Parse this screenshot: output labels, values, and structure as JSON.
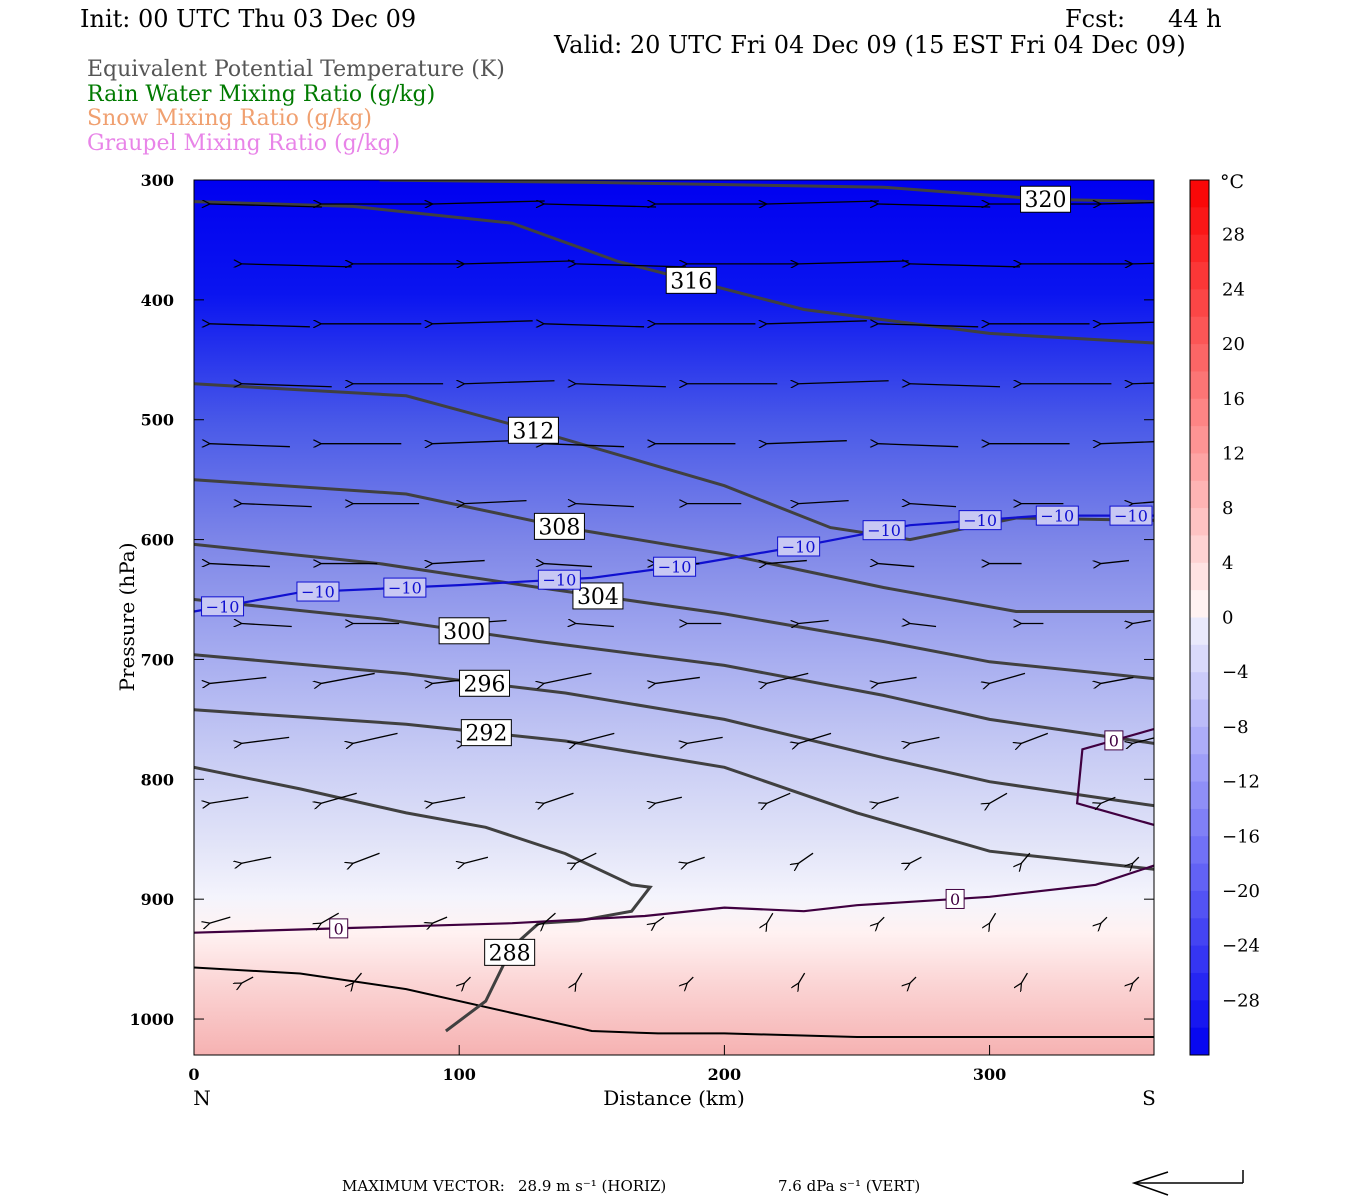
{
  "header": {
    "init": "Init: 00 UTC Thu 03 Dec 09",
    "fcst_label": "Fcst:",
    "fcst_value": "44 h",
    "valid": "Valid: 20 UTC Fri 04 Dec 09 (15 EST Fri 04 Dec 09)"
  },
  "legend_titles": [
    {
      "text": "Equivalent Potential Temperature (K)",
      "color": "#555555"
    },
    {
      "text": "Rain Water Mixing Ratio (g/kg)",
      "color": "#007a00"
    },
    {
      "text": "Snow Mixing Ratio (g/kg)",
      "color": "#f0a070"
    },
    {
      "text": "Graupel Mixing Ratio (g/kg)",
      "color": "#e884e8"
    }
  ],
  "chart_data": {
    "type": "cross-section",
    "xlabel": "Distance (km)",
    "ylabel": "Pressure (hPa)",
    "x_range": [
      0,
      362
    ],
    "y_range": [
      300,
      1030
    ],
    "y_log": false,
    "x_ticks": [
      0,
      100,
      200,
      300
    ],
    "y_ticks": [
      300,
      400,
      500,
      600,
      700,
      800,
      900,
      1000
    ],
    "x_end_labels": {
      "left": "N",
      "right": "S"
    },
    "colorbar": {
      "unit": "°C",
      "tick_labels": [
        "28",
        "24",
        "20",
        "16",
        "12",
        "8",
        "4",
        "0",
        "−4",
        "−8",
        "−12",
        "−16",
        "−20",
        "−24",
        "−28"
      ],
      "tick_values": [
        28,
        24,
        20,
        16,
        12,
        8,
        4,
        0,
        -4,
        -8,
        -12,
        -16,
        -20,
        -24,
        -28
      ],
      "range": [
        -32,
        32
      ]
    },
    "theta_e_contours": [
      {
        "label": "320",
        "points": [
          [
            70,
            300
          ],
          [
            150,
            302
          ],
          [
            260,
            306
          ],
          [
            320,
            316
          ],
          [
            362,
            318
          ]
        ]
      },
      {
        "label": "316",
        "points": [
          [
            0,
            318
          ],
          [
            60,
            322
          ],
          [
            120,
            336
          ],
          [
            160,
            368
          ],
          [
            230,
            408
          ],
          [
            300,
            428
          ],
          [
            362,
            436
          ]
        ]
      },
      {
        "label": "312",
        "points": [
          [
            0,
            470
          ],
          [
            80,
            480
          ],
          [
            130,
            510
          ],
          [
            200,
            555
          ],
          [
            240,
            590
          ],
          [
            270,
            600
          ],
          [
            310,
            582
          ],
          [
            362,
            584
          ]
        ]
      },
      {
        "label": "308",
        "points": [
          [
            0,
            550
          ],
          [
            80,
            562
          ],
          [
            140,
            590
          ],
          [
            200,
            612
          ],
          [
            260,
            640
          ],
          [
            310,
            660
          ],
          [
            362,
            660
          ]
        ]
      },
      {
        "label": "304",
        "points": [
          [
            0,
            604
          ],
          [
            70,
            620
          ],
          [
            130,
            640
          ],
          [
            200,
            662
          ],
          [
            260,
            685
          ],
          [
            300,
            702
          ],
          [
            362,
            716
          ]
        ]
      },
      {
        "label": "300",
        "points": [
          [
            0,
            650
          ],
          [
            70,
            666
          ],
          [
            130,
            685
          ],
          [
            200,
            705
          ],
          [
            260,
            730
          ],
          [
            300,
            750
          ],
          [
            362,
            770
          ]
        ]
      },
      {
        "label": "296",
        "points": [
          [
            0,
            696
          ],
          [
            80,
            712
          ],
          [
            140,
            728
          ],
          [
            200,
            750
          ],
          [
            260,
            782
          ],
          [
            300,
            802
          ],
          [
            362,
            822
          ]
        ]
      },
      {
        "label": "292",
        "points": [
          [
            0,
            742
          ],
          [
            80,
            754
          ],
          [
            140,
            768
          ],
          [
            200,
            790
          ],
          [
            250,
            828
          ],
          [
            300,
            860
          ],
          [
            362,
            875
          ]
        ]
      },
      {
        "label": "288",
        "points": [
          [
            0,
            790
          ],
          [
            40,
            808
          ],
          [
            80,
            828
          ],
          [
            110,
            840
          ],
          [
            140,
            862
          ],
          [
            165,
            888
          ],
          [
            172,
            890
          ],
          [
            165,
            910
          ],
          [
            145,
            918
          ],
          [
            130,
            920
          ],
          [
            120,
            940
          ],
          [
            110,
            985
          ],
          [
            95,
            1010
          ]
        ]
      }
    ],
    "temperature_contours": [
      {
        "label": "−10",
        "points": [
          [
            0,
            660
          ],
          [
            40,
            644
          ],
          [
            100,
            638
          ],
          [
            150,
            632
          ],
          [
            190,
            620
          ],
          [
            230,
            605
          ],
          [
            270,
            588
          ],
          [
            320,
            580
          ],
          [
            362,
            580
          ]
        ]
      },
      {
        "label": "0",
        "points": [
          [
            0,
            928
          ],
          [
            60,
            924
          ],
          [
            120,
            920
          ],
          [
            170,
            914
          ],
          [
            200,
            907
          ],
          [
            230,
            910
          ],
          [
            250,
            905
          ],
          [
            300,
            898
          ],
          [
            340,
            888
          ],
          [
            362,
            872
          ]
        ]
      },
      {
        "label": "0",
        "points": [
          [
            362,
            758
          ],
          [
            335,
            775
          ],
          [
            333,
            820
          ],
          [
            362,
            838
          ]
        ]
      }
    ],
    "surface": [
      [
        0,
        957
      ],
      [
        40,
        962
      ],
      [
        80,
        975
      ],
      [
        120,
        995
      ],
      [
        150,
        1010
      ],
      [
        175,
        1012
      ],
      [
        200,
        1012
      ],
      [
        250,
        1015
      ],
      [
        300,
        1015
      ],
      [
        362,
        1015
      ]
    ],
    "max_vector": {
      "label": "MAXIMUM VECTOR:",
      "horiz": "28.9 m s⁻¹ (HORIZ)",
      "vert": "7.6 dPa s⁻¹ (VERT)"
    }
  }
}
